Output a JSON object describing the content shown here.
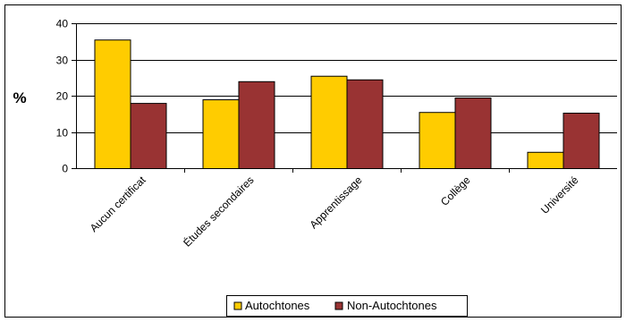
{
  "chart_data": {
    "type": "bar",
    "title": "",
    "xlabel": "",
    "ylabel": "%",
    "ylim": [
      0,
      40
    ],
    "yticks": [
      0,
      10,
      20,
      30,
      40
    ],
    "grid": true,
    "legend_position": "bottom",
    "categories": [
      "Aucun certificat",
      "Études secondaires",
      "Apprentissage",
      "Collège",
      "Université"
    ],
    "series": [
      {
        "name": "Autochtones",
        "color": "#FFCC00",
        "values": [
          35.5,
          19,
          25.5,
          15.5,
          4.5
        ]
      },
      {
        "name": "Non-Autochtones",
        "color": "#993333",
        "values": [
          18,
          24,
          24.5,
          19.5,
          15.3
        ]
      }
    ]
  }
}
